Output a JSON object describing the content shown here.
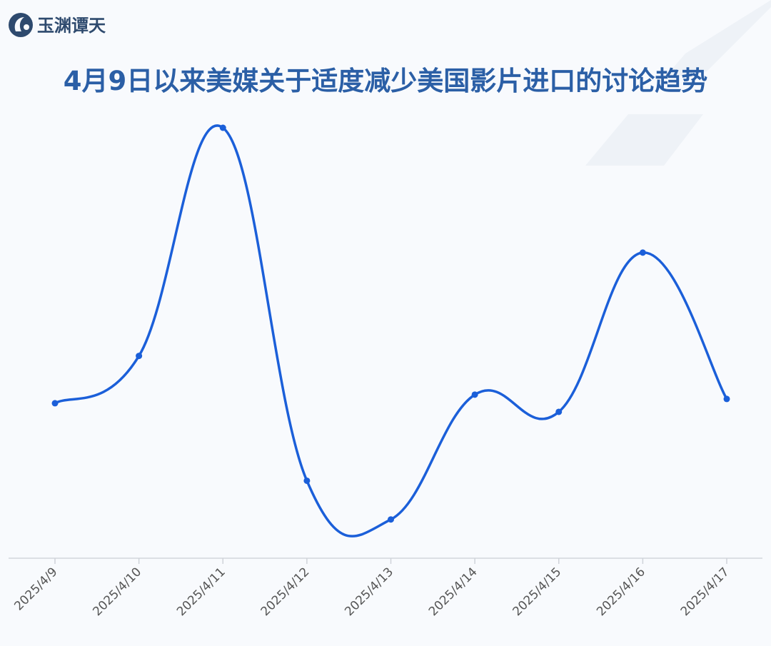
{
  "logo": "玉渊谭天",
  "chart_data": {
    "type": "line",
    "title": "4月9日以来美媒关于适度减少美国影片进口的讨论趋势",
    "categories": [
      "2025/4/9",
      "2025/4/10",
      "2025/4/11",
      "2025/4/12",
      "2025/4/13",
      "2025/4/14",
      "2025/4/15",
      "2025/4/16",
      "2025/4/17"
    ],
    "values": [
      36,
      47,
      100,
      18,
      9,
      38,
      34,
      71,
      37
    ],
    "color": "#1b5fd9",
    "ylim": [
      0,
      100
    ]
  }
}
